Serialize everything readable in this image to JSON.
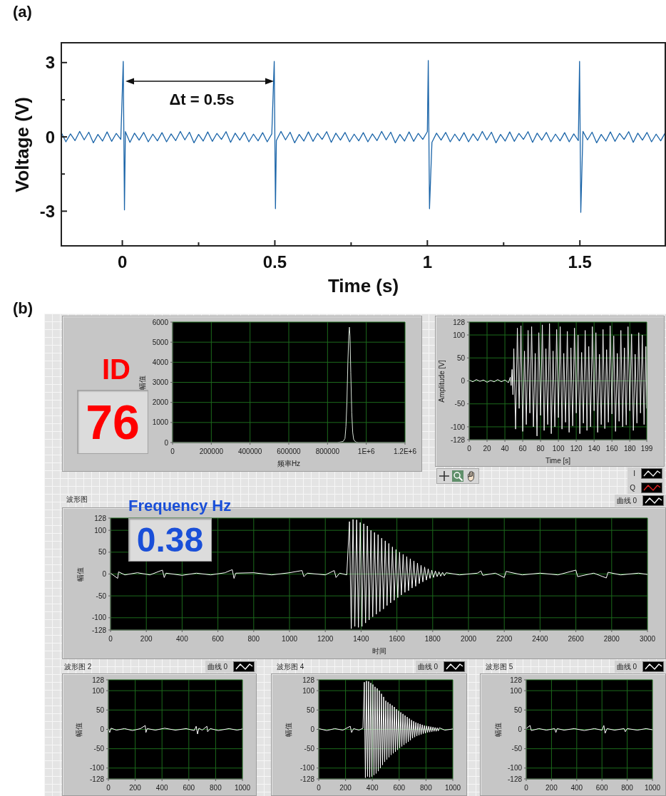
{
  "chart_data": [
    {
      "type": "line",
      "title": "(a)",
      "xlabel": "Time (s)",
      "ylabel": "Voltage (V)",
      "x": [
        -0.2,
        -0.185,
        -0.17,
        -0.155,
        -0.14,
        -0.125,
        -0.11,
        -0.095,
        -0.08,
        -0.065,
        -0.05,
        -0.035,
        -0.02,
        -0.005,
        0.003,
        0.007,
        0.01,
        0.025,
        0.04,
        0.055,
        0.07,
        0.085,
        0.1,
        0.115,
        0.13,
        0.145,
        0.16,
        0.175,
        0.19,
        0.205,
        0.22,
        0.235,
        0.25,
        0.265,
        0.28,
        0.295,
        0.31,
        0.325,
        0.34,
        0.355,
        0.37,
        0.385,
        0.4,
        0.415,
        0.43,
        0.445,
        0.46,
        0.475,
        0.49,
        0.498,
        0.502,
        0.505,
        0.52,
        0.535,
        0.55,
        0.565,
        0.58,
        0.595,
        0.61,
        0.625,
        0.64,
        0.655,
        0.67,
        0.685,
        0.7,
        0.715,
        0.73,
        0.745,
        0.76,
        0.775,
        0.79,
        0.805,
        0.82,
        0.835,
        0.85,
        0.865,
        0.88,
        0.895,
        0.91,
        0.925,
        0.94,
        0.955,
        0.97,
        0.985,
        1,
        1.003,
        1.007,
        1.015,
        1.03,
        1.045,
        1.06,
        1.075,
        1.09,
        1.105,
        1.12,
        1.135,
        1.15,
        1.165,
        1.18,
        1.195,
        1.21,
        1.225,
        1.24,
        1.255,
        1.27,
        1.285,
        1.3,
        1.315,
        1.33,
        1.345,
        1.36,
        1.375,
        1.39,
        1.405,
        1.42,
        1.435,
        1.45,
        1.465,
        1.48,
        1.495,
        1.499,
        1.503,
        1.51,
        1.525,
        1.54,
        1.555,
        1.57,
        1.585,
        1.6,
        1.615,
        1.63,
        1.645,
        1.66,
        1.675,
        1.69,
        1.705,
        1.72,
        1.735,
        1.75,
        1.765,
        1.78
      ],
      "values": [
        0.17,
        -0.2,
        0.12,
        -0.15,
        0.22,
        -0.12,
        0.19,
        -0.24,
        0.1,
        -0.17,
        0.2,
        -0.18,
        0.14,
        -0.1,
        3.05,
        -2.95,
        0.21,
        -0.22,
        0.15,
        -0.13,
        0.18,
        -0.2,
        0.11,
        -0.16,
        0.17,
        -0.2,
        0.12,
        -0.15,
        0.22,
        -0.12,
        0.19,
        -0.24,
        0.1,
        -0.17,
        0.2,
        -0.18,
        0.14,
        -0.1,
        0.21,
        -0.22,
        0.15,
        -0.13,
        0.18,
        -0.2,
        0.11,
        -0.16,
        0.17,
        -0.2,
        0.12,
        3.05,
        -2.9,
        -0.15,
        0.22,
        -0.12,
        0.19,
        -0.24,
        0.1,
        -0.17,
        0.2,
        -0.18,
        0.14,
        -0.1,
        0.21,
        -0.22,
        0.15,
        -0.13,
        0.18,
        -0.2,
        0.11,
        -0.16,
        0.17,
        -0.2,
        0.12,
        -0.15,
        0.22,
        -0.12,
        0.19,
        -0.24,
        0.1,
        -0.17,
        0.2,
        -0.18,
        0.14,
        -0.1,
        0.21,
        3.08,
        -2.9,
        -0.22,
        0.15,
        -0.13,
        0.18,
        -0.2,
        0.11,
        -0.16,
        0.17,
        -0.2,
        0.12,
        -0.15,
        0.22,
        -0.12,
        0.19,
        -0.24,
        0.1,
        -0.17,
        0.2,
        -0.18,
        0.14,
        -0.1,
        0.21,
        -0.22,
        0.15,
        -0.13,
        0.18,
        -0.2,
        0.11,
        -0.16,
        0.17,
        -0.2,
        0.12,
        -0.15,
        3.05,
        -3.05,
        0.22,
        -0.12,
        0.19,
        -0.24,
        0.1,
        -0.17,
        0.2,
        -0.18,
        0.14,
        -0.1,
        0.21,
        -0.22,
        0.15,
        -0.13,
        0.18,
        -0.2,
        0.11,
        -0.16,
        0.17
      ],
      "color": "#1a64a8",
      "xlim": [
        -0.2,
        1.78
      ],
      "ylim": [
        -4.4,
        3.8
      ],
      "xticks": [
        0,
        {
          "value": 0.25,
          "label": null
        },
        0.5,
        {
          "value": 0.75,
          "label": null
        },
        1,
        {
          "value": 1.25,
          "label": null
        },
        1.5
      ],
      "yticks": [
        -3,
        {
          "value": -1.5,
          "label": null
        },
        0,
        {
          "value": 1.5,
          "label": null
        },
        3
      ],
      "annotations": [
        "Δt = 0.5s"
      ]
    },
    {
      "type": "other",
      "title": "(b)"
    },
    {
      "type": "other",
      "title": "ID",
      "annotations": [
        "76"
      ]
    },
    {
      "type": "line",
      "xlabel": "频率Hz",
      "ylabel": "幅值",
      "x": [
        0,
        850000,
        880000,
        890000,
        895000,
        900000,
        905000,
        910000,
        913000,
        916000,
        920000,
        925000,
        930000,
        935000,
        945000,
        960000,
        1200000
      ],
      "values": [
        0,
        0,
        50,
        200,
        800,
        2000,
        4000,
        5400,
        5750,
        5300,
        3500,
        1500,
        500,
        150,
        30,
        0,
        0
      ],
      "color": "#d9e3d9",
      "xlim": [
        0,
        1200000
      ],
      "ylim": [
        0,
        6000
      ],
      "xticks": [
        0,
        200000,
        400000,
        600000,
        800000,
        {
          "value": 1000000,
          "label": "1E+6"
        },
        {
          "value": 1200000,
          "label": "1.2E+6"
        }
      ],
      "yticks": [
        0,
        1000,
        2000,
        3000,
        4000,
        5000,
        6000
      ],
      "grid": true
    },
    {
      "type": "line",
      "xlabel": "Time [s]",
      "ylabel": "Amplitude [V]",
      "x": [
        0,
        4,
        8,
        12,
        16,
        20,
        24,
        28,
        32,
        36,
        40,
        44,
        46,
        47,
        48,
        49,
        50,
        52,
        54,
        56,
        58,
        60,
        62,
        64,
        66,
        68,
        70,
        72,
        74,
        76,
        78,
        80,
        82,
        84,
        86,
        88,
        90,
        92,
        94,
        96,
        98,
        100,
        102,
        104,
        106,
        108,
        110,
        112,
        114,
        116,
        118,
        120,
        122,
        124,
        126,
        128,
        130,
        132,
        134,
        136,
        138,
        140,
        142,
        144,
        146,
        148,
        150,
        152,
        154,
        156,
        158,
        160,
        162,
        164,
        166,
        168,
        170,
        172,
        174,
        176,
        178,
        180,
        182,
        184,
        186,
        188,
        190,
        192,
        194,
        196,
        198,
        199
      ],
      "series": [
        {
          "name": "I",
          "color": "#f0f0f0",
          "values": [
            2,
            -2,
            3,
            -1,
            2,
            -3,
            1,
            -2,
            3,
            -2,
            2,
            -4,
            8,
            -10,
            25,
            -30,
            70,
            -105,
            115,
            -60,
            120,
            -110,
            65,
            -95,
            110,
            -70,
            118,
            -100,
            60,
            -120,
            105,
            -75,
            122,
            -108,
            70,
            -95,
            125,
            -115,
            65,
            -100,
            112,
            -80,
            118,
            -105,
            60,
            -90,
            108,
            -112,
            72,
            -98,
            115,
            -70,
            100,
            -115,
            62,
            -92,
            110,
            -108,
            75,
            -100,
            118,
            -65,
            105,
            -112,
            58,
            -95,
            112,
            -104,
            68,
            -90,
            120,
            -72,
            98,
            -110,
            60,
            -88,
            110,
            -100,
            72,
            -96,
            118,
            -65,
            102,
            -108,
            58,
            -92,
            105,
            -70,
            100,
            -95,
            75,
            -60
          ]
        },
        {
          "name": "Q",
          "color": "#e02020",
          "values": [
            null,
            null,
            null,
            null,
            null,
            null,
            null,
            null,
            null,
            null,
            null,
            null,
            null,
            null,
            null,
            null,
            null,
            null,
            null,
            null,
            null,
            null,
            null,
            null,
            null,
            null,
            null,
            null,
            null,
            null,
            null,
            null,
            null,
            null,
            null,
            null,
            null,
            null,
            null,
            null,
            null,
            null,
            null,
            null,
            null,
            null,
            null,
            null,
            null,
            null,
            null,
            null,
            null,
            null,
            null,
            null,
            null,
            null,
            null,
            null,
            null,
            null,
            null,
            null,
            null,
            null,
            null,
            null,
            null,
            null,
            null,
            null,
            null,
            null,
            null,
            null,
            null,
            null,
            null,
            null,
            null,
            null,
            null,
            null,
            null,
            null,
            null,
            null,
            null,
            null,
            null,
            null
          ]
        }
      ],
      "xlim": [
        0,
        199
      ],
      "ylim": [
        -128,
        128
      ],
      "xticks": [
        0,
        20,
        40,
        60,
        80,
        100,
        120,
        140,
        160,
        180,
        199
      ],
      "yticks": [
        -128,
        -100,
        -50,
        0,
        50,
        100,
        128
      ],
      "grid": true,
      "legend": "bottom right"
    },
    {
      "type": "other",
      "title": "Frequency Hz",
      "annotations": [
        "0.38"
      ]
    },
    {
      "type": "line",
      "title": "波形图",
      "xlabel": "时间",
      "ylabel": "幅值",
      "x": [
        0,
        40,
        45,
        80,
        150,
        220,
        290,
        300,
        310,
        400,
        480,
        560,
        640,
        680,
        690,
        700,
        800,
        900,
        1000,
        1070,
        1080,
        1100,
        1200,
        1250,
        1260,
        1280,
        1320,
        1335,
        1345,
        1355,
        1365,
        1375,
        1385,
        1395,
        1405,
        1415,
        1425,
        1435,
        1445,
        1455,
        1465,
        1475,
        1485,
        1495,
        1505,
        1515,
        1525,
        1535,
        1545,
        1555,
        1565,
        1575,
        1585,
        1595,
        1605,
        1615,
        1625,
        1635,
        1645,
        1655,
        1665,
        1675,
        1685,
        1695,
        1705,
        1715,
        1725,
        1735,
        1745,
        1755,
        1765,
        1775,
        1785,
        1795,
        1805,
        1815,
        1825,
        1835,
        1845,
        1855,
        1865,
        1875,
        1950,
        2050,
        2070,
        2080,
        2150,
        2200,
        2210,
        2300,
        2400,
        2500,
        2600,
        2610,
        2700,
        2770,
        2780,
        2850,
        2950,
        3000
      ],
      "series": [
        {
          "name": "曲线 0",
          "color": "#ffffff",
          "values": [
            2,
            -10,
            5,
            -2,
            3,
            -2,
            9,
            -8,
            2,
            -3,
            2,
            -2,
            3,
            10,
            -10,
            2,
            3,
            -2,
            3,
            8,
            -6,
            2,
            -2,
            8,
            -8,
            2,
            -2,
            120,
            -125,
            125,
            -120,
            124,
            -122,
            118,
            -120,
            115,
            -112,
            110,
            -105,
            100,
            -98,
            95,
            -92,
            90,
            -86,
            82,
            -80,
            76,
            -72,
            70,
            -66,
            62,
            -60,
            56,
            -54,
            50,
            -48,
            45,
            -42,
            40,
            -38,
            35,
            -32,
            30,
            -28,
            25,
            -22,
            20,
            -18,
            16,
            -14,
            12,
            -10,
            9,
            -8,
            7,
            -6,
            5,
            -5,
            4,
            -4,
            3,
            -2,
            2,
            7,
            -3,
            2,
            -8,
            6,
            -2,
            2,
            -2,
            9,
            -6,
            2,
            -9,
            4,
            -2,
            2,
            -1
          ]
        }
      ],
      "xlim": [
        0,
        3000
      ],
      "ylim": [
        -128,
        128
      ],
      "xticks": [
        0,
        200,
        400,
        600,
        800,
        1000,
        1200,
        1400,
        1600,
        1800,
        2000,
        2200,
        2400,
        2600,
        2800,
        3000
      ],
      "yticks": [
        -128,
        -100,
        -50,
        0,
        50,
        100,
        128
      ],
      "grid": true,
      "legend": "top right"
    },
    {
      "type": "line",
      "title": "波形图 2",
      "ylabel": "幅值",
      "x": [
        0,
        10,
        20,
        60,
        120,
        180,
        240,
        275,
        280,
        290,
        350,
        420,
        500,
        580,
        640,
        655,
        665,
        675,
        700,
        735,
        740,
        760,
        820,
        900,
        960,
        1000
      ],
      "series": [
        {
          "name": "曲线 0",
          "color": "#ffffff",
          "values": [
            2,
            -8,
            3,
            -2,
            2,
            -3,
            2,
            10,
            -8,
            2,
            -2,
            3,
            -2,
            2,
            -3,
            8,
            -12,
            3,
            -2,
            8,
            -6,
            2,
            -3,
            2,
            -2,
            1
          ]
        }
      ],
      "xlim": [
        0,
        1000
      ],
      "ylim": [
        -128,
        128
      ],
      "xticks": [
        0,
        200,
        400,
        600,
        800,
        1000
      ],
      "yticks": [
        -128,
        -100,
        -50,
        0,
        50,
        100,
        128
      ],
      "grid": true,
      "legend": "top right"
    },
    {
      "type": "line",
      "title": "波形图 4",
      "ylabel": "幅值",
      "x": [
        0,
        60,
        120,
        180,
        235,
        245,
        260,
        300,
        330,
        340,
        348,
        356,
        364,
        372,
        380,
        388,
        396,
        404,
        412,
        420,
        428,
        436,
        444,
        452,
        460,
        468,
        476,
        484,
        492,
        500,
        508,
        516,
        524,
        532,
        540,
        548,
        556,
        564,
        572,
        580,
        588,
        596,
        604,
        612,
        620,
        628,
        636,
        644,
        652,
        660,
        668,
        676,
        684,
        692,
        700,
        708,
        716,
        724,
        732,
        740,
        748,
        756,
        764,
        772,
        780,
        788,
        796,
        804,
        812,
        820,
        828,
        836,
        844,
        852,
        860,
        868,
        876,
        884,
        892,
        900,
        940,
        1000
      ],
      "series": [
        {
          "name": "曲线 0",
          "color": "#ffffff",
          "values": [
            2,
            -3,
            2,
            -2,
            8,
            -8,
            2,
            -2,
            3,
            122,
            -125,
            125,
            -122,
            124,
            -124,
            120,
            -122,
            116,
            -118,
            110,
            -114,
            106,
            -108,
            100,
            -100,
            92,
            -92,
            84,
            -84,
            74,
            -78,
            70,
            -72,
            66,
            -66,
            62,
            -62,
            58,
            -58,
            52,
            -53,
            48,
            -48,
            44,
            -44,
            40,
            -40,
            36,
            -36,
            32,
            -32,
            28,
            -28,
            24,
            -23,
            21,
            -20,
            18,
            -17,
            16,
            -15,
            14,
            -13,
            12,
            -11,
            10,
            -10,
            9,
            -8,
            8,
            -7,
            7,
            -6,
            6,
            -5,
            5,
            -5,
            4,
            -4,
            4,
            -2,
            1
          ]
        }
      ],
      "xlim": [
        0,
        1000
      ],
      "ylim": [
        -128,
        128
      ],
      "xticks": [
        0,
        200,
        400,
        600,
        800,
        1000
      ],
      "yticks": [
        -128,
        -100,
        -50,
        0,
        50,
        100,
        128
      ],
      "grid": true,
      "legend": "top right"
    },
    {
      "type": "line",
      "title": "波形图 5",
      "ylabel": "幅值",
      "x": [
        0,
        30,
        40,
        100,
        160,
        225,
        235,
        245,
        300,
        380,
        460,
        540,
        600,
        615,
        625,
        640,
        700,
        775,
        785,
        800,
        880,
        950,
        1000
      ],
      "series": [
        {
          "name": "曲线 0",
          "color": "#ffffff",
          "values": [
            2,
            10,
            -3,
            2,
            -2,
            2,
            -8,
            2,
            -2,
            2,
            -3,
            2,
            -2,
            10,
            -10,
            2,
            -2,
            2,
            -6,
            2,
            -2,
            2,
            -1
          ]
        }
      ],
      "xlim": [
        0,
        1000
      ],
      "ylim": [
        -128,
        128
      ],
      "xticks": [
        0,
        200,
        400,
        600,
        800,
        1000
      ],
      "yticks": [
        -128,
        -100,
        -50,
        0,
        50,
        100,
        128
      ],
      "grid": true,
      "legend": "top right"
    }
  ]
}
